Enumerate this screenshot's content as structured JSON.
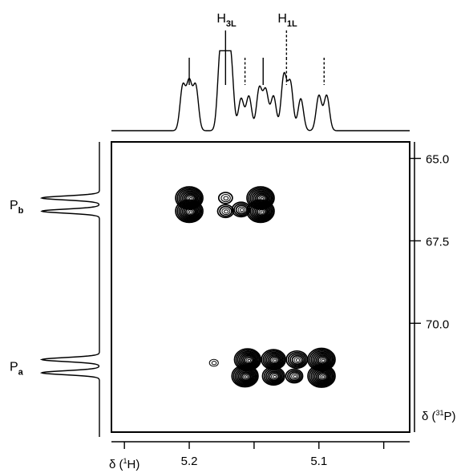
{
  "chart_data": {
    "type": "contour",
    "xlabel": {
      "prefix": "δ (",
      "sup": "1",
      "rest": "H)"
    },
    "ylabel": {
      "prefix": "δ (",
      "sup": "31",
      "rest": "P)"
    },
    "xlim": [
      5.26,
      5.03
    ],
    "ylim": [
      64.5,
      73.3
    ],
    "x_ticks": [
      5.25,
      5.2,
      5.15,
      5.1,
      5.05
    ],
    "x_tick_labels": [
      "5.2",
      "5.1"
    ],
    "x_tick_label_values": [
      5.2,
      5.1
    ],
    "y_ticks": [
      65.0,
      67.5,
      70.0
    ],
    "y_tick_labels": [
      "65.0",
      "67.5",
      "70.0"
    ],
    "top_projection_annotations": [
      {
        "label": "H",
        "sub": "3L",
        "x": 5.172,
        "style": "solid"
      },
      {
        "label": "H",
        "sub": "1L",
        "x": 5.125,
        "style": "dashed"
      }
    ],
    "top_projection_markers": [
      {
        "x": 5.2,
        "style": "solid"
      },
      {
        "x": 5.172,
        "style": "solid"
      },
      {
        "x": 5.157,
        "style": "dashed"
      },
      {
        "x": 5.143,
        "style": "solid"
      },
      {
        "x": 5.125,
        "style": "dashed"
      },
      {
        "x": 5.096,
        "style": "dashed"
      }
    ],
    "side_projection_labels": [
      {
        "label": "P",
        "sub": "b",
        "y": 66.4
      },
      {
        "label": "P",
        "sub": "a",
        "y": 71.3
      }
    ],
    "side_projection_peaks": [
      {
        "y": 66.2,
        "height": 1.0
      },
      {
        "y": 66.6,
        "height": 1.0
      },
      {
        "y": 71.1,
        "height": 1.0
      },
      {
        "y": 71.5,
        "height": 1.0
      }
    ],
    "top_projection_peaks": [
      {
        "x": 5.205,
        "height": 0.58
      },
      {
        "x": 5.2,
        "height": 0.62
      },
      {
        "x": 5.195,
        "height": 0.58
      },
      {
        "x": 5.176,
        "height": 1.0
      },
      {
        "x": 5.172,
        "height": 0.96
      },
      {
        "x": 5.168,
        "height": 0.92
      },
      {
        "x": 5.16,
        "height": 0.42
      },
      {
        "x": 5.154,
        "height": 0.45
      },
      {
        "x": 5.146,
        "height": 0.55
      },
      {
        "x": 5.141,
        "height": 0.52
      },
      {
        "x": 5.135,
        "height": 0.45
      },
      {
        "x": 5.127,
        "height": 0.72
      },
      {
        "x": 5.122,
        "height": 0.62
      },
      {
        "x": 5.114,
        "height": 0.42
      },
      {
        "x": 5.1,
        "height": 0.46
      },
      {
        "x": 5.094,
        "height": 0.46
      }
    ],
    "cross_peaks": [
      {
        "x": 5.2,
        "y": 66.2,
        "size": 1.0
      },
      {
        "x": 5.2,
        "y": 66.6,
        "size": 1.0
      },
      {
        "x": 5.172,
        "y": 66.2,
        "size": 0.35
      },
      {
        "x": 5.172,
        "y": 66.6,
        "size": 0.45
      },
      {
        "x": 5.16,
        "y": 66.55,
        "size": 0.55
      },
      {
        "x": 5.145,
        "y": 66.2,
        "size": 1.0
      },
      {
        "x": 5.145,
        "y": 66.6,
        "size": 1.0
      },
      {
        "x": 5.181,
        "y": 71.2,
        "size": 0.12
      },
      {
        "x": 5.155,
        "y": 71.1,
        "size": 0.95
      },
      {
        "x": 5.135,
        "y": 71.1,
        "size": 0.85
      },
      {
        "x": 5.117,
        "y": 71.1,
        "size": 0.7
      },
      {
        "x": 5.098,
        "y": 71.1,
        "size": 1.0
      },
      {
        "x": 5.157,
        "y": 71.6,
        "size": 0.95
      },
      {
        "x": 5.135,
        "y": 71.6,
        "size": 0.75
      },
      {
        "x": 5.119,
        "y": 71.6,
        "size": 0.5
      },
      {
        "x": 5.098,
        "y": 71.6,
        "size": 1.0
      }
    ]
  }
}
